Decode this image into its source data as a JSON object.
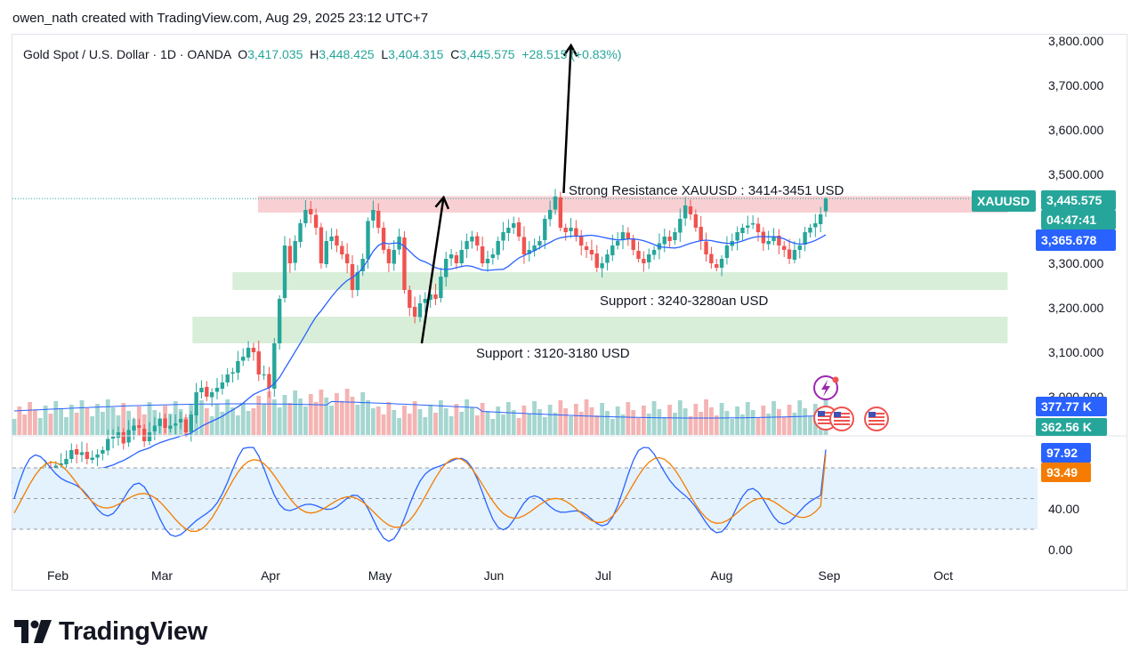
{
  "header": {
    "caption": "owen_nath created with TradingView.com, Aug 29, 2025 23:12 UTC+7"
  },
  "legend": {
    "symbol": "Gold Spot / U.S. Dollar · 1D · OANDA",
    "o_label": "O",
    "o_value": "3,417.035",
    "h_label": "H",
    "h_value": "3,448.425",
    "l_label": "L",
    "l_value": "3,404.315",
    "c_label": "C",
    "c_value": "3,445.575",
    "change": "+28.515 (+0.83%)"
  },
  "annotations": {
    "resistance": "Strong Resistance XAUUSD : 3414-3451 USD",
    "support1": "Support : 3240-3280an USD",
    "support2": "Support : 3120-3180 USD"
  },
  "tags": {
    "symbol": "XAUUSD",
    "price": "3,445.575",
    "countdown": "04:47:41",
    "ma": "3,365.678",
    "vol1": "377.77 K",
    "vol2": "362.56 K",
    "osc1": "97.92",
    "osc2": "93.49"
  },
  "footer": {
    "brand": "TradingView"
  },
  "colors": {
    "up": "#26a69a",
    "down": "#ef5350",
    "ma": "#2962ff",
    "resistance_zone": "#f8d0d3",
    "support_zone": "#d8eed9",
    "osc_fast": "#2962ff",
    "osc_slow": "#f57c00",
    "osc_band": "#e3f2fd"
  },
  "chart_data": [
    {
      "type": "candlestick",
      "title": "Gold Spot / U.S. Dollar · 1D · OANDA",
      "price_axis_ticks": [
        "3,800.000",
        "3,700.000",
        "3,600.000",
        "3,500.000",
        "3,300.000",
        "3,200.000",
        "3,100.000"
      ],
      "price_axis_hidden_tick": "3,000.000",
      "x_ticks": [
        "Feb",
        "Mar",
        "Apr",
        "May",
        "Jun",
        "Jul",
        "Aug",
        "Sep",
        "Oct"
      ],
      "ylim": [
        2860,
        3830
      ],
      "last_close": 3445.575,
      "ohlc_last": {
        "o": 3417.035,
        "h": 3448.425,
        "l": 3404.315,
        "c": 3445.575
      },
      "zones": [
        {
          "label": "resistance",
          "from": 3414,
          "to": 3451,
          "start": "Mar 28",
          "end": "Oct 20"
        },
        {
          "label": "support",
          "from": 3240,
          "to": 3280,
          "start": "Mar 21",
          "end": "Oct 20"
        },
        {
          "label": "support",
          "from": 3120,
          "to": 3180,
          "start": "Mar 10",
          "end": "Oct 20"
        }
      ],
      "arrows": [
        {
          "from_date": "May 12",
          "from_price": 3120,
          "to_date": "May 18",
          "to_price": 3448
        },
        {
          "from_date": "Jun 20",
          "from_price": 3458,
          "to_date": "Jun 22",
          "to_price": 3790
        }
      ],
      "closes": [
        2810,
        2800,
        2800,
        2795,
        2790,
        2820,
        2840,
        2805,
        2845,
        2850,
        2860,
        2880,
        2870,
        2875,
        2860,
        2863,
        2870,
        2880,
        2905,
        2910,
        2920,
        2895,
        2925,
        2935,
        2930,
        2900,
        2920,
        2935,
        2950,
        2930,
        2935,
        2940,
        2950,
        2920,
        2960,
        3010,
        3020,
        3000,
        3010,
        3020,
        3032,
        3050,
        3055,
        3080,
        3090,
        3110,
        3100,
        3050,
        3050,
        3020,
        3120,
        3220,
        3340,
        3300,
        3350,
        3390,
        3420,
        3410,
        3380,
        3300,
        3350,
        3360,
        3340,
        3320,
        3300,
        3240,
        3280,
        3310,
        3395,
        3420,
        3380,
        3330,
        3300,
        3330,
        3360,
        3240,
        3200,
        3180,
        3210,
        3220,
        3230,
        3220,
        3270,
        3310,
        3320,
        3300,
        3330,
        3350,
        3360,
        3340,
        3300,
        3310,
        3320,
        3350,
        3370,
        3380,
        3390,
        3360,
        3320,
        3330,
        3340,
        3350,
        3400,
        3420,
        3450,
        3380,
        3370,
        3380,
        3360,
        3340,
        3330,
        3320,
        3290,
        3300,
        3320,
        3340,
        3350,
        3370,
        3355,
        3330,
        3310,
        3300,
        3320,
        3330,
        3345,
        3360,
        3350,
        3370,
        3400,
        3430,
        3410,
        3380,
        3350,
        3320,
        3300,
        3290,
        3310,
        3340,
        3350,
        3370,
        3380,
        3385,
        3390,
        3370,
        3345,
        3350,
        3360,
        3340,
        3330,
        3310,
        3330,
        3340,
        3370,
        3380,
        3390,
        3410,
        3445.575
      ],
      "ma_period": 20,
      "volume_axis_labels": [
        "377.77 K",
        "362.56 K"
      ]
    },
    {
      "type": "line",
      "title": "Stochastic RSI",
      "axis_ticks": [
        "40.00",
        "0.00"
      ],
      "ylim": [
        -5,
        110
      ],
      "bands": [
        20,
        50,
        80
      ],
      "series": [
        {
          "values": [
            97.92
          ]
        },
        {
          "values": [
            93.49
          ]
        }
      ]
    }
  ]
}
